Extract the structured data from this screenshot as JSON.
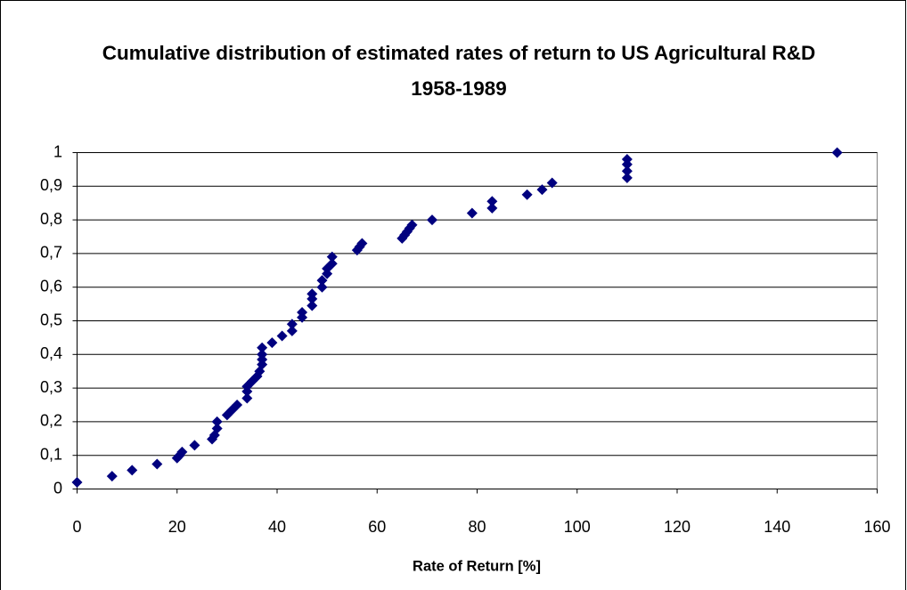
{
  "chart_data": {
    "type": "scatter",
    "title": "Cumulative distribution of estimated rates of return to US Agricultural R&D 1958-1989",
    "x_label": "Rate of Return [%]",
    "color": "#00007f",
    "grid": true,
    "xlim": [
      0,
      160
    ],
    "xticks": [
      0,
      20,
      40,
      60,
      80,
      100,
      120,
      140,
      160
    ],
    "ylim": [
      0,
      1
    ],
    "yticks": [
      0,
      {
        "value": 0.1,
        "label": "0,1"
      },
      {
        "value": 0.2,
        "label": "0,2"
      },
      {
        "value": 0.3,
        "label": "0,3"
      },
      {
        "value": 0.4,
        "label": "0,4"
      },
      {
        "value": 0.5,
        "label": "0,5"
      },
      {
        "value": 0.6,
        "label": "0,6"
      },
      {
        "value": 0.7,
        "label": "0,7"
      },
      {
        "value": 0.8,
        "label": "0,8"
      },
      {
        "value": 0.9,
        "label": "0,9"
      },
      1
    ],
    "x": [
      0,
      7,
      11,
      16,
      20,
      20.5,
      21,
      23.5,
      27,
      27.5,
      28,
      28,
      30,
      31,
      32,
      34,
      34,
      34,
      35,
      36,
      36.5,
      37,
      37,
      37,
      37,
      39,
      41,
      43,
      43,
      45,
      45,
      47,
      47,
      47,
      49,
      49,
      50,
      50,
      51,
      51,
      56,
      56.5,
      57,
      65,
      65.5,
      66,
      66.5,
      67,
      71,
      79,
      83,
      83,
      90,
      93,
      95,
      110,
      110,
      110,
      110,
      152
    ],
    "values": [
      0.02,
      0.038,
      0.056,
      0.074,
      0.092,
      0.1,
      0.11,
      0.13,
      0.148,
      0.16,
      0.18,
      0.2,
      0.22,
      0.235,
      0.25,
      0.27,
      0.29,
      0.305,
      0.32,
      0.335,
      0.35,
      0.37,
      0.385,
      0.4,
      0.42,
      0.435,
      0.455,
      0.47,
      0.49,
      0.51,
      0.525,
      0.545,
      0.565,
      0.58,
      0.6,
      0.62,
      0.64,
      0.655,
      0.67,
      0.69,
      0.71,
      0.72,
      0.73,
      0.745,
      0.755,
      0.765,
      0.775,
      0.785,
      0.8,
      0.82,
      0.835,
      0.855,
      0.875,
      0.89,
      0.91,
      0.925,
      0.945,
      0.965,
      0.98,
      1
    ]
  }
}
